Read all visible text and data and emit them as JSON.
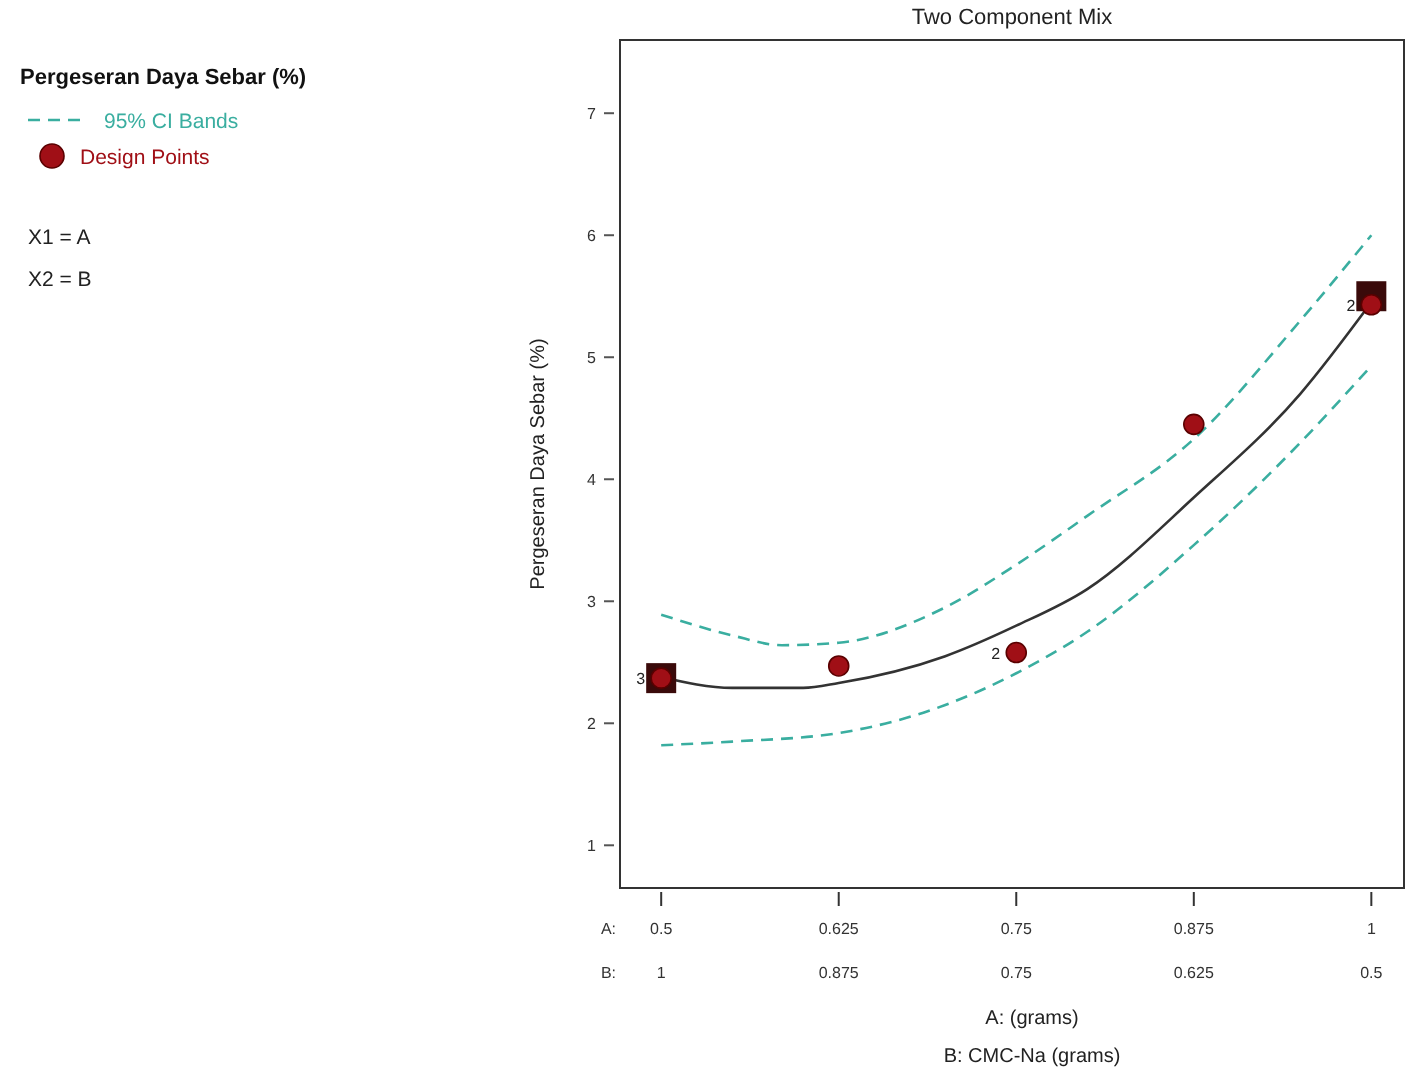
{
  "chart_data": {
    "type": "scatter",
    "title": "Two Component Mix",
    "xlabel": "A: (grams)",
    "x2label": "B: CMC-Na (grams)",
    "ylabel": "Pergeseran Daya Sebar (%)",
    "legend_title": "Pergeseran Daya Sebar (%)",
    "legend": "top left",
    "grid": false,
    "xlim": [
      0.471,
      1.023
    ],
    "xticks": [
      0.5,
      0.625,
      0.75,
      0.875,
      1
    ],
    "x2lim": [
      1.029,
      0.477
    ],
    "x2ticks": [
      1,
      0.875,
      0.75,
      0.625,
      0.5
    ],
    "ylim": [
      0.65,
      7.6
    ],
    "yticks": [
      1,
      2,
      3,
      4,
      5,
      6,
      7
    ],
    "series": [
      {
        "type": "line",
        "color": "#333333",
        "line_style": "solid",
        "marker": "none",
        "x": [
          0.5,
          0.55,
          0.6,
          0.625,
          0.7,
          0.75,
          0.8,
          0.875,
          0.95,
          1
        ],
        "values": [
          2.38,
          2.29,
          2.29,
          2.33,
          2.55,
          2.8,
          3.1,
          3.85,
          4.7,
          5.45
        ]
      },
      {
        "type": "line",
        "name": "95% CI Bands",
        "color": "#3aaea0",
        "line_style": "dashed",
        "marker": "none",
        "x": [
          0.5,
          0.55,
          0.585,
          0.625,
          0.7,
          0.75,
          0.8,
          0.875,
          0.95,
          1
        ],
        "values": [
          2.89,
          2.72,
          2.64,
          2.66,
          2.95,
          3.3,
          3.7,
          4.33,
          5.3,
          6.0
        ]
      },
      {
        "type": "line",
        "color": "#3aaea0",
        "line_style": "dashed",
        "marker": "none",
        "x": [
          0.5,
          0.55,
          0.625,
          0.7,
          0.75,
          0.8,
          0.875,
          0.95,
          1
        ],
        "values": [
          1.82,
          1.85,
          1.92,
          2.15,
          2.41,
          2.75,
          3.46,
          4.3,
          4.93
        ]
      },
      {
        "color": "#3a0a0a",
        "marker": "square",
        "x": [
          0.5,
          1
        ],
        "values": [
          2.37,
          5.5
        ]
      },
      {
        "name": "Design Points",
        "color": "#a00f16",
        "marker": "circle",
        "x": [
          0.5,
          0.625,
          0.75,
          0.875,
          1
        ],
        "values": [
          2.37,
          2.47,
          2.58,
          4.45,
          5.43
        ]
      }
    ],
    "annotations": [
      "A:",
      "B:",
      "X1 = A",
      "X2 = B",
      {
        "text": "3",
        "x": 0.5,
        "y": 2.37
      },
      {
        "text": "2",
        "x": 0.75,
        "y": 2.58
      },
      {
        "text": "2",
        "x": 1,
        "y": 5.43
      }
    ]
  }
}
